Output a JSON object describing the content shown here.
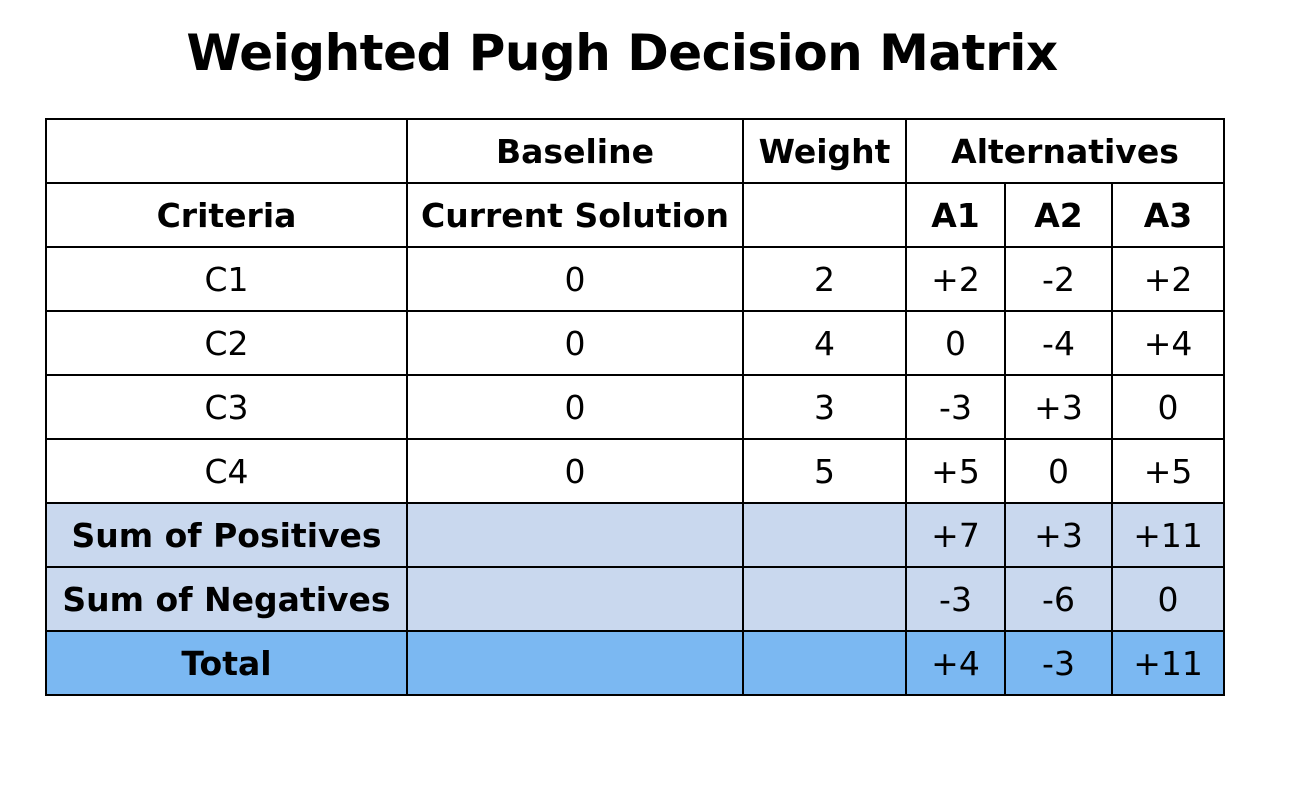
{
  "title": "Weighted Pugh Decision Matrix",
  "header_row1": {
    "blank": "",
    "baseline": "Baseline",
    "weight": "Weight",
    "alternatives": "Alternatives"
  },
  "header_row2": {
    "criteria": "Criteria",
    "current_solution": "Current Solution",
    "weight_blank": "",
    "a1": "A1",
    "a2": "A2",
    "a3": "A3"
  },
  "criteria_rows": [
    {
      "criterion": "C1",
      "baseline": "0",
      "weight": "2",
      "a1": "+2",
      "a2": "-2",
      "a3": "+2"
    },
    {
      "criterion": "C2",
      "baseline": "0",
      "weight": "4",
      "a1": "0",
      "a2": "-4",
      "a3": "+4"
    },
    {
      "criterion": "C3",
      "baseline": "0",
      "weight": "3",
      "a1": "-3",
      "a2": "+3",
      "a3": "0"
    },
    {
      "criterion": "C4",
      "baseline": "0",
      "weight": "5",
      "a1": "+5",
      "a2": "0",
      "a3": "+5"
    }
  ],
  "sum_positives": {
    "label": "Sum of Positives",
    "a1": "+7",
    "a2": "+3",
    "a3": "+11"
  },
  "sum_negatives": {
    "label": "Sum of Negatives",
    "a1": "-3",
    "a2": "-6",
    "a3": "0"
  },
  "total": {
    "label": "Total",
    "a1": "+4",
    "a2": "-3",
    "a3": "+11"
  },
  "colors": {
    "sum_row_fill": "#c9d8ee",
    "total_row_fill": "#7bb8f2",
    "border": "#000000"
  }
}
